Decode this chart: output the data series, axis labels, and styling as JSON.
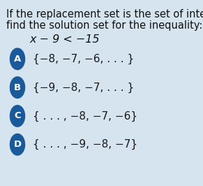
{
  "bg_color": "#d6e4f0",
  "title_line1": "If the replacement set is the set of integers,",
  "title_line2": "find the solution set for the inequality:",
  "inequality": "x − 9 < −15",
  "options": [
    {
      "label": "A",
      "text": "{−8, −7, −6, . . . }"
    },
    {
      "label": "B",
      "text": "{−9, −8, −7, . . . }"
    },
    {
      "label": "C",
      "text": "{ . . . , −8, −7, −6}"
    },
    {
      "label": "D",
      "text": "{ . . . , −9, −8, −7}"
    }
  ],
  "circle_color": "#1a5a9a",
  "circle_text_color": "#ffffff",
  "option_text_color": "#1a1a1a",
  "title_text_color": "#111111",
  "inequality_text_color": "#111111",
  "font_size_title": 10.5,
  "font_size_inequality": 11.5,
  "font_size_options": 11.0,
  "font_size_label": 9.5
}
